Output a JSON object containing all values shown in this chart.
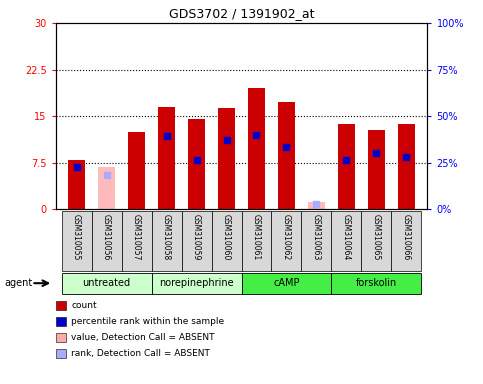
{
  "title": "GDS3702 / 1391902_at",
  "samples": [
    "GSM310055",
    "GSM310056",
    "GSM310057",
    "GSM310058",
    "GSM310059",
    "GSM310060",
    "GSM310061",
    "GSM310062",
    "GSM310063",
    "GSM310064",
    "GSM310065",
    "GSM310066"
  ],
  "red_heights": [
    8.0,
    0.0,
    12.5,
    16.5,
    14.5,
    16.3,
    19.5,
    17.3,
    0.2,
    13.8,
    12.7,
    13.7
  ],
  "pink_heights": [
    0.0,
    6.8,
    0.0,
    0.0,
    0.0,
    0.0,
    0.0,
    0.0,
    1.2,
    0.0,
    0.0,
    0.0
  ],
  "blue_positions": [
    6.8,
    0.0,
    0.0,
    11.8,
    8.0,
    11.2,
    12.0,
    10.0,
    0.0,
    8.0,
    9.0,
    8.5
  ],
  "light_blue_positions": [
    0.0,
    5.5,
    0.0,
    0.0,
    0.0,
    0.0,
    0.0,
    0.0,
    0.9,
    0.0,
    0.0,
    0.0
  ],
  "absent_red": [
    false,
    true,
    false,
    false,
    false,
    false,
    false,
    false,
    true,
    false,
    false,
    false
  ],
  "ylim_left": [
    0,
    30
  ],
  "ylim_right": [
    0,
    100
  ],
  "yticks_left": [
    0,
    7.5,
    15,
    22.5,
    30
  ],
  "ytick_labels_left": [
    "0",
    "7.5",
    "15",
    "22.5",
    "30"
  ],
  "yticks_right": [
    0,
    25,
    50,
    75,
    100
  ],
  "ytick_labels_right": [
    "0%",
    "25%",
    "50%",
    "75%",
    "100%"
  ],
  "hlines": [
    7.5,
    15,
    22.5
  ],
  "group_data": [
    {
      "name": "untreated",
      "start": 0,
      "end": 2,
      "color": "#ccffcc"
    },
    {
      "name": "norepinephrine",
      "start": 3,
      "end": 5,
      "color": "#ccffcc"
    },
    {
      "name": "cAMP",
      "start": 6,
      "end": 8,
      "color": "#44ee44"
    },
    {
      "name": "forskolin",
      "start": 9,
      "end": 11,
      "color": "#44ee44"
    }
  ],
  "bar_width": 0.55,
  "legend_items": [
    {
      "color": "#cc0000",
      "label": "count"
    },
    {
      "color": "#0000cc",
      "label": "percentile rank within the sample"
    },
    {
      "color": "#ffaaaa",
      "label": "value, Detection Call = ABSENT"
    },
    {
      "color": "#aaaaff",
      "label": "rank, Detection Call = ABSENT"
    }
  ]
}
